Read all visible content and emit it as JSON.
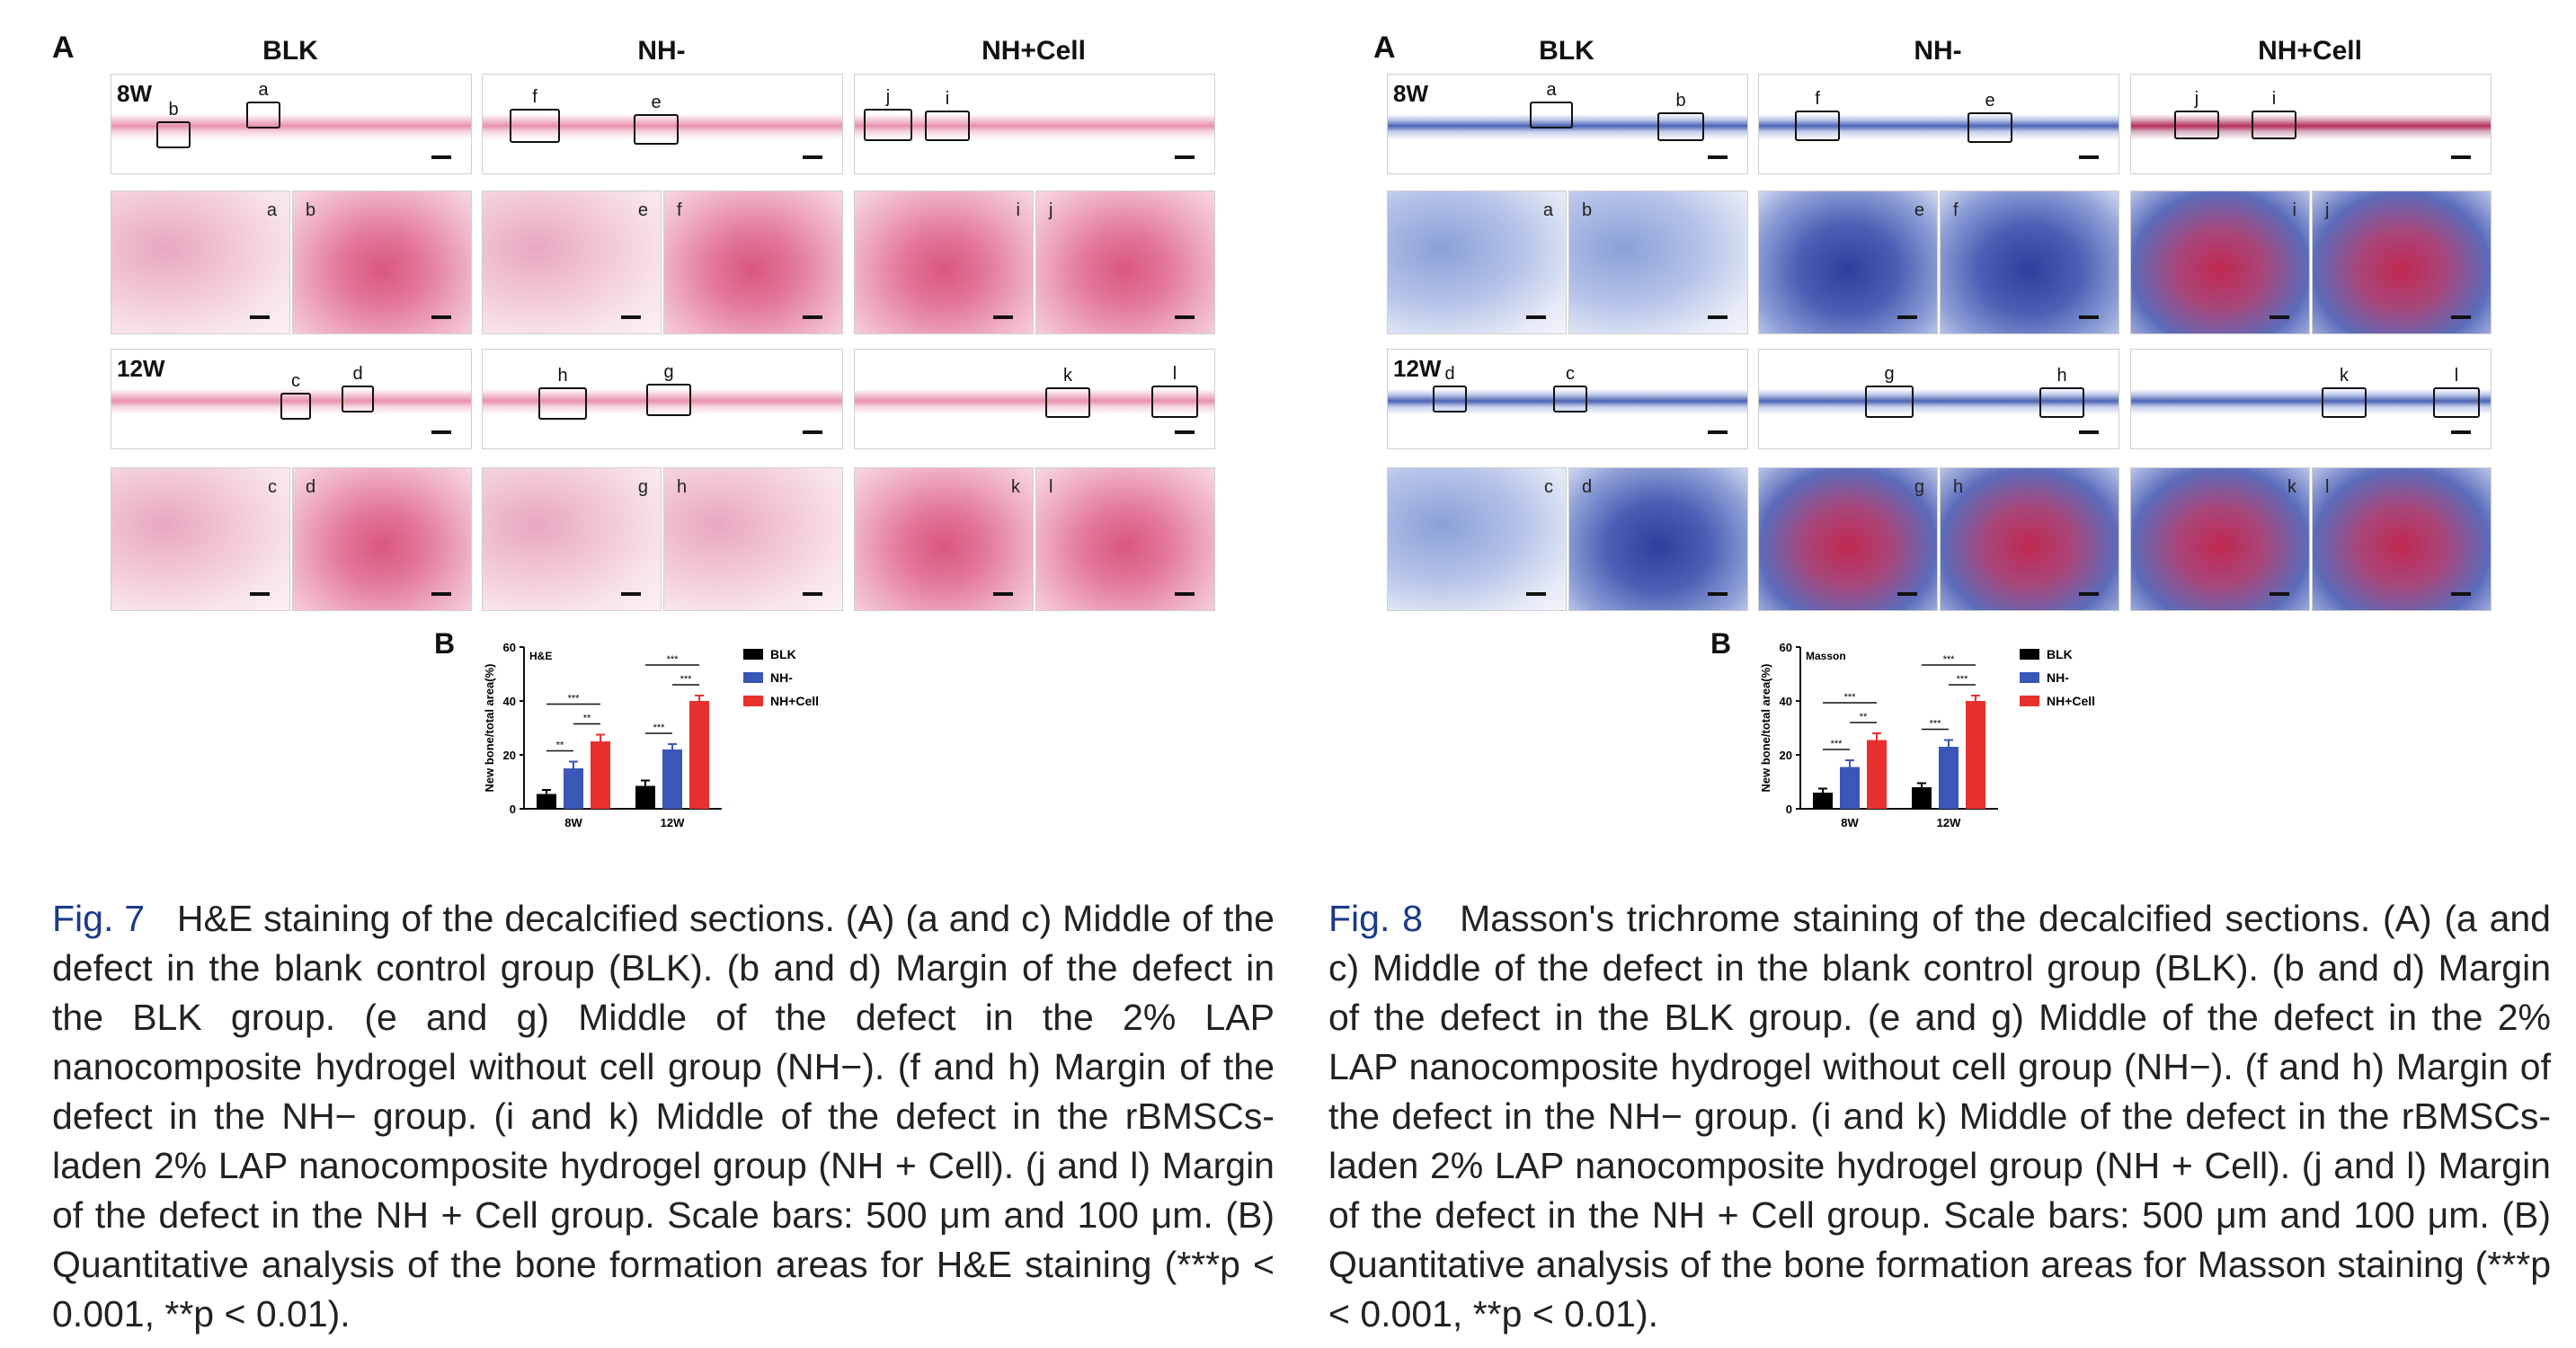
{
  "fig7": {
    "panel_a": "A",
    "panel_b": "B",
    "columns": [
      "BLK",
      "NH-",
      "NH+Cell"
    ],
    "rows": [
      "8W",
      "12W"
    ],
    "roi": {
      "blk8": [
        "b",
        "a"
      ],
      "nh8": [
        "f",
        "e"
      ],
      "cell8": [
        "j",
        "i"
      ],
      "blk12": [
        "c",
        "d"
      ],
      "nh12": [
        "h",
        "g"
      ],
      "cell12": [
        "k",
        "l"
      ]
    },
    "tiles_8w": [
      "a",
      "b",
      "e",
      "f",
      "i",
      "j"
    ],
    "tiles_12w": [
      "c",
      "d",
      "g",
      "h",
      "k",
      "l"
    ],
    "caption": {
      "label": "Fig. 7",
      "text": "H&E staining of the decalcified sections. (A) (a and c) Middle of the defect in the blank control group (BLK). (b and d) Margin of the defect in the BLK group. (e and g) Middle of the defect in the 2% LAP nanocomposite hydrogel without cell group (NH−). (f and h) Margin of the defect in the NH− group. (i and k) Middle of the defect in the rBMSCs-laden 2% LAP nanocomposite hydrogel group (NH + Cell). (j and l) Margin of the defect in the NH + Cell group. Scale bars: 500 μm and 100 μm. (B) Quantitative analysis of the bone formation areas for H&E staining (***p < 0.001, **p < 0.01)."
    }
  },
  "fig8": {
    "panel_a": "A",
    "panel_b": "B",
    "columns": [
      "BLK",
      "NH-",
      "NH+Cell"
    ],
    "rows": [
      "8W",
      "12W"
    ],
    "roi": {
      "blk8": [
        "a",
        "b"
      ],
      "nh8": [
        "f",
        "e"
      ],
      "cell8": [
        "j",
        "i"
      ],
      "blk12": [
        "d",
        "c"
      ],
      "nh12": [
        "g",
        "h"
      ],
      "cell12": [
        "k",
        "l"
      ]
    },
    "tiles_8w": [
      "a",
      "b",
      "e",
      "f",
      "i",
      "j"
    ],
    "tiles_12w": [
      "c",
      "d",
      "g",
      "h",
      "k",
      "l"
    ],
    "caption": {
      "label": "Fig. 8",
      "text": "Masson's trichrome staining of the decalcified sections. (A) (a and c) Middle of the defect in the blank control group (BLK). (b and d) Margin of the defect in the BLK group. (e and g) Middle of the defect in the 2% LAP nanocomposite hydrogel without cell group (NH−). (f and h) Margin of the defect in the NH− group. (i and k) Middle of the defect in the rBMSCs-laden 2% LAP nanocomposite hydrogel group (NH + Cell). (j and l) Margin of the defect in the NH + Cell group. Scale bars: 500 μm and 100 μm. (B) Quantitative analysis of the bone formation areas for Masson staining (***p < 0.001, **p < 0.01)."
    }
  },
  "chart_data": [
    {
      "type": "bar",
      "panel_title": "H&E",
      "categories": [
        "8W",
        "12W"
      ],
      "ylabel": "New bone/total area(%)",
      "ylim": [
        0,
        60
      ],
      "yticks": [
        0,
        20,
        40,
        60
      ],
      "series": [
        {
          "name": "BLK",
          "color": "#000000",
          "values": [
            5.5,
            8.5
          ],
          "errors": [
            1.5,
            2.0
          ]
        },
        {
          "name": "NH-",
          "color": "#3a56b8",
          "values": [
            15,
            22
          ],
          "errors": [
            2.5,
            2.0
          ]
        },
        {
          "name": "NH+Cell",
          "color": "#e8312f",
          "values": [
            25,
            40
          ],
          "errors": [
            2.5,
            2.0
          ]
        }
      ],
      "significance": [
        {
          "group": "8W",
          "from": 0,
          "to": 1,
          "label": "**"
        },
        {
          "group": "8W",
          "from": 1,
          "to": 2,
          "label": "**"
        },
        {
          "group": "8W",
          "from": 0,
          "to": 2,
          "label": "***"
        },
        {
          "group": "12W",
          "from": 0,
          "to": 1,
          "label": "***"
        },
        {
          "group": "12W",
          "from": 1,
          "to": 2,
          "label": "***"
        },
        {
          "group": "12W",
          "from": 0,
          "to": 2,
          "label": "***"
        }
      ],
      "legend_position": "right"
    },
    {
      "type": "bar",
      "panel_title": "Masson",
      "categories": [
        "8W",
        "12W"
      ],
      "ylabel": "New bone/total area(%)",
      "ylim": [
        0,
        60
      ],
      "yticks": [
        0,
        20,
        40,
        60
      ],
      "series": [
        {
          "name": "BLK",
          "color": "#000000",
          "values": [
            6,
            8
          ],
          "errors": [
            1.5,
            1.5
          ]
        },
        {
          "name": "NH-",
          "color": "#3a56b8",
          "values": [
            15.5,
            23
          ],
          "errors": [
            2.5,
            2.5
          ]
        },
        {
          "name": "NH+Cell",
          "color": "#e8312f",
          "values": [
            25.5,
            40
          ],
          "errors": [
            2.5,
            2.0
          ]
        }
      ],
      "significance": [
        {
          "group": "8W",
          "from": 0,
          "to": 1,
          "label": "***"
        },
        {
          "group": "8W",
          "from": 1,
          "to": 2,
          "label": "**"
        },
        {
          "group": "8W",
          "from": 0,
          "to": 2,
          "label": "***"
        },
        {
          "group": "12W",
          "from": 0,
          "to": 1,
          "label": "***"
        },
        {
          "group": "12W",
          "from": 1,
          "to": 2,
          "label": "***"
        },
        {
          "group": "12W",
          "from": 0,
          "to": 2,
          "label": "***"
        }
      ],
      "legend_position": "right"
    }
  ]
}
